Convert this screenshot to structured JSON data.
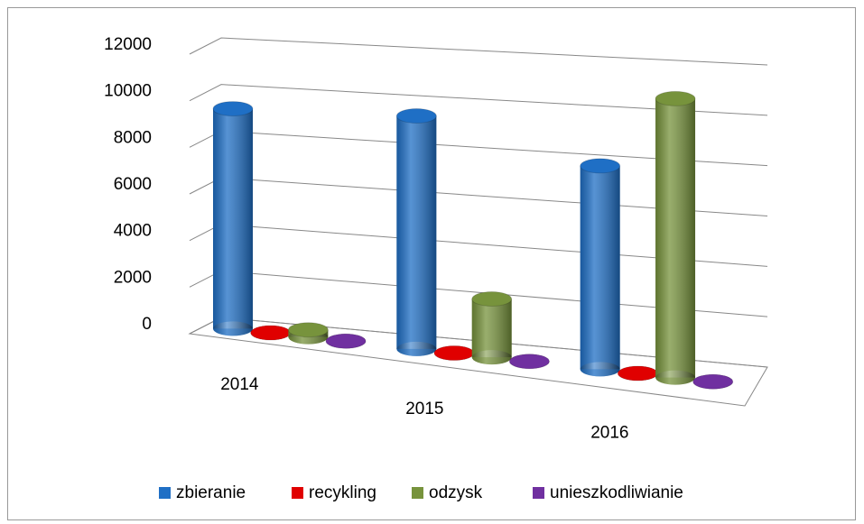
{
  "chart_data": {
    "type": "bar3d",
    "categories": [
      "2014",
      "2015",
      "2016"
    ],
    "series": [
      {
        "name": "zbieranie",
        "color": "#1f6fc5",
        "values": [
          9400,
          9700,
          8250
        ]
      },
      {
        "name": "recykling",
        "color": "#e00000",
        "values": [
          0,
          0,
          0
        ]
      },
      {
        "name": "odzysk",
        "color": "#77933c",
        "values": [
          300,
          2400,
          11200
        ]
      },
      {
        "name": "unieszkodliwianie",
        "color": "#7030a0",
        "values": [
          0,
          0,
          0
        ]
      }
    ],
    "ylim": [
      0,
      12000
    ],
    "yticks": [
      0,
      2000,
      4000,
      6000,
      8000,
      10000,
      12000
    ],
    "grid": true,
    "legend": "bottom"
  }
}
